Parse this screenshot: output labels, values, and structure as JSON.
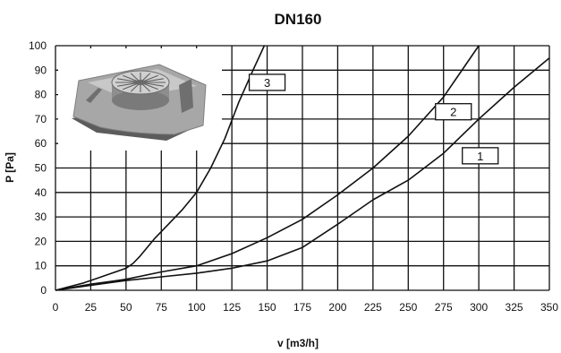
{
  "chart_data": {
    "type": "line",
    "title": "DN160",
    "xlabel": "v [m3/h]",
    "ylabel": "P [Pa]",
    "xlim": [
      0,
      350
    ],
    "ylim": [
      0,
      100
    ],
    "x_ticks": [
      "0",
      "25",
      "50",
      "75",
      "100",
      "125",
      "150",
      "175",
      "200",
      "225",
      "250",
      "275",
      "300",
      "325",
      "350"
    ],
    "y_ticks": [
      "0",
      "10",
      "20",
      "30",
      "40",
      "50",
      "60",
      "70",
      "80",
      "90",
      "100"
    ],
    "grid": true,
    "legend": "none",
    "colors": {
      "line": "#111111",
      "grid": "#111111",
      "background": "#ffffff"
    },
    "series": [
      {
        "label": "3",
        "label_at": [
          150,
          85
        ],
        "points": [
          [
            0,
            0
          ],
          [
            10,
            1.5
          ],
          [
            20,
            3
          ],
          [
            30,
            5
          ],
          [
            40,
            7
          ],
          [
            50,
            9
          ],
          [
            55,
            11
          ],
          [
            60,
            14
          ],
          [
            70,
            21
          ],
          [
            80,
            27
          ],
          [
            90,
            33
          ],
          [
            100,
            40
          ],
          [
            110,
            50
          ],
          [
            120,
            62
          ],
          [
            130,
            77
          ],
          [
            140,
            90
          ],
          [
            148,
            100
          ]
        ]
      },
      {
        "label": "2",
        "label_at": [
          282,
          73
        ],
        "points": [
          [
            0,
            0
          ],
          [
            25,
            2.5
          ],
          [
            50,
            4.5
          ],
          [
            75,
            7.5
          ],
          [
            100,
            10
          ],
          [
            125,
            15
          ],
          [
            150,
            21.5
          ],
          [
            175,
            29
          ],
          [
            200,
            39
          ],
          [
            225,
            50
          ],
          [
            250,
            63
          ],
          [
            275,
            79
          ],
          [
            300,
            100
          ]
        ]
      },
      {
        "label": "1",
        "label_at": [
          301,
          55
        ],
        "points": [
          [
            0,
            0
          ],
          [
            25,
            2
          ],
          [
            50,
            4
          ],
          [
            75,
            5.5
          ],
          [
            100,
            7
          ],
          [
            125,
            9
          ],
          [
            150,
            12
          ],
          [
            175,
            17.5
          ],
          [
            200,
            27
          ],
          [
            225,
            37
          ],
          [
            250,
            45
          ],
          [
            275,
            56
          ],
          [
            300,
            70
          ],
          [
            325,
            83
          ],
          [
            350,
            95
          ]
        ]
      }
    ]
  },
  "inset_image": {
    "name": "roof-vent-product-image",
    "shown": true
  }
}
